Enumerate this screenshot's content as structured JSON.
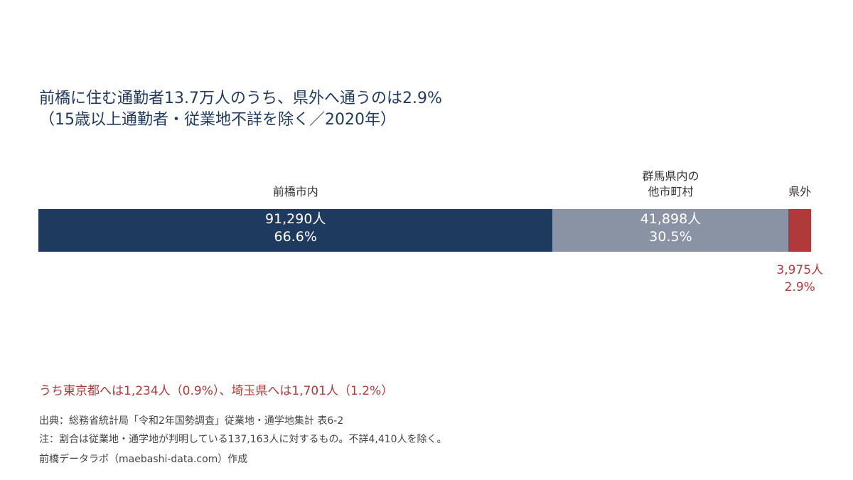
{
  "colors": {
    "title": "#1f3a5f",
    "maebashi": "#1f3a5f",
    "other_gunma": "#8a93a3",
    "outside": "#b03a3a",
    "annotation": "#b03a3a"
  },
  "title": {
    "line1": "前橋に住む通勤者13.7万人のうち、県外へ通うのは2.9%",
    "line2": "（15歳以上通勤者・従業地不詳を除く／2020年）"
  },
  "chart_data": {
    "type": "bar",
    "orientation": "horizontal-stacked-100",
    "categories": [
      "前橋市内",
      "群馬県内の他市町村",
      "県外"
    ],
    "series": [
      {
        "category_label_lines": [
          "前橋市内"
        ],
        "value": 91290,
        "value_label": "91,290人",
        "percent": 66.6,
        "percent_label": "66.6%",
        "color": "#1f3a5f"
      },
      {
        "category_label_lines": [
          "群馬県内の",
          "他市町村"
        ],
        "value": 41898,
        "value_label": "41,898人",
        "percent": 30.5,
        "percent_label": "30.5%",
        "color": "#8a93a3"
      },
      {
        "category_label_lines": [
          "県外"
        ],
        "value": 3975,
        "value_label": "3,975人",
        "percent": 2.9,
        "percent_label": "2.9%",
        "color": "#b03a3a"
      }
    ],
    "total": 137163
  },
  "annotation": "うち東京都へは1,234人（0.9%）、埼玉県へは1,701人（1.2%）",
  "footer": {
    "source": "出典：総務省統計局「令和2年国勢調査」従業地・通学地集計 表6-2",
    "note": "注：割合は従業地・通学地が判明している137,163人に対するもの。不詳4,410人を除く。",
    "credit": "前橋データラボ（maebashi-data.com）作成"
  }
}
